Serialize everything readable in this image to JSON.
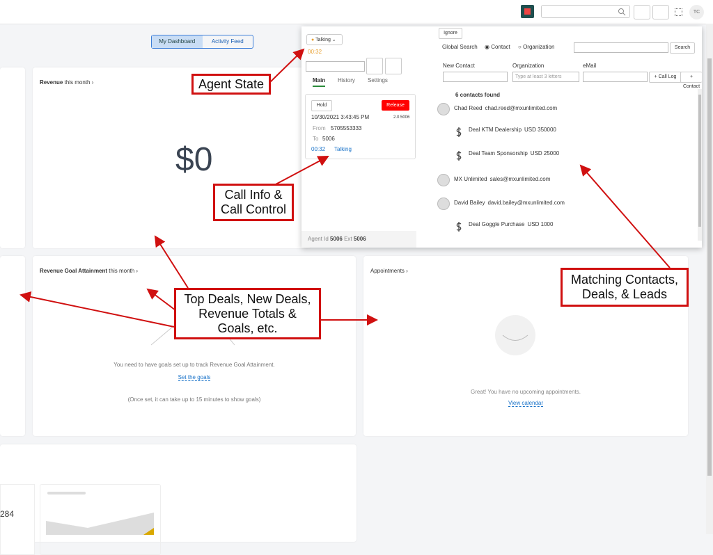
{
  "header": {
    "avatar": "TC"
  },
  "dashboard": {
    "tabs": [
      "My Dashboard",
      "Activity Feed"
    ],
    "revenue": {
      "title": "Revenue",
      "period": "this month",
      "value": "$0"
    },
    "goal": {
      "title": "Revenue Goal Attainment",
      "period": "this month",
      "message": "You need to have goals set up to track Revenue Goal Attainment.",
      "link": "Set the goals",
      "note": "(Once set, it can take up to 15 minutes to show goals)"
    },
    "appointments": {
      "title": "Appointments",
      "message": "Great! You have no upcoming appointments.",
      "link": "View calendar"
    },
    "stat": "284"
  },
  "phone": {
    "state": "Talking",
    "timer": "00:32",
    "tabs": [
      "Main",
      "History",
      "Settings"
    ],
    "hold": "Hold",
    "release": "Release",
    "datetime": "10/30/2021 3:43:45 PM",
    "version": "2.0.5006",
    "from_label": "From",
    "from": "5705553333",
    "to_label": "To",
    "to": "5006",
    "call_timer": "00:32",
    "call_state": "Talking",
    "agent_label": "Agent Id",
    "agent_id": "5006",
    "ext_label": "Ext",
    "ext": "5006"
  },
  "search": {
    "ignore": "Ignore",
    "label": "Global Search",
    "options": [
      "Contact",
      "Organization"
    ],
    "button": "Search",
    "fields": [
      "New Contact",
      "Organization",
      "eMail"
    ],
    "placeholder": "Type at least 3 letters",
    "call_log": "+ Call Log",
    "add_contact": "+ Contact",
    "count": "6 contacts found",
    "results": [
      {
        "name": "Chad Reed",
        "email": "chad.reed@mxunlimited.com",
        "deals": [
          {
            "name": "Deal KTM Dealership",
            "amount": "USD 350000"
          },
          {
            "name": "Deal Team Sponsorship",
            "amount": "USD 25000"
          }
        ]
      },
      {
        "name": "MX Unlimited",
        "email": "sales@mxunlimited.com",
        "deals": []
      },
      {
        "name": "David Bailey",
        "email": "david.bailey@mxunlimited.com",
        "deals": [
          {
            "name": "Deal Goggle Purchase",
            "amount": "USD 1000"
          }
        ]
      }
    ]
  },
  "annotations": [
    {
      "lines": [
        "Agent State"
      ]
    },
    {
      "lines": [
        "Call Info &",
        "Call Control"
      ]
    },
    {
      "lines": [
        "Top Deals, New Deals,",
        "Revenue Totals &",
        "Goals, etc."
      ]
    },
    {
      "lines": [
        "Matching Contacts,",
        "Deals, & Leads"
      ]
    }
  ]
}
